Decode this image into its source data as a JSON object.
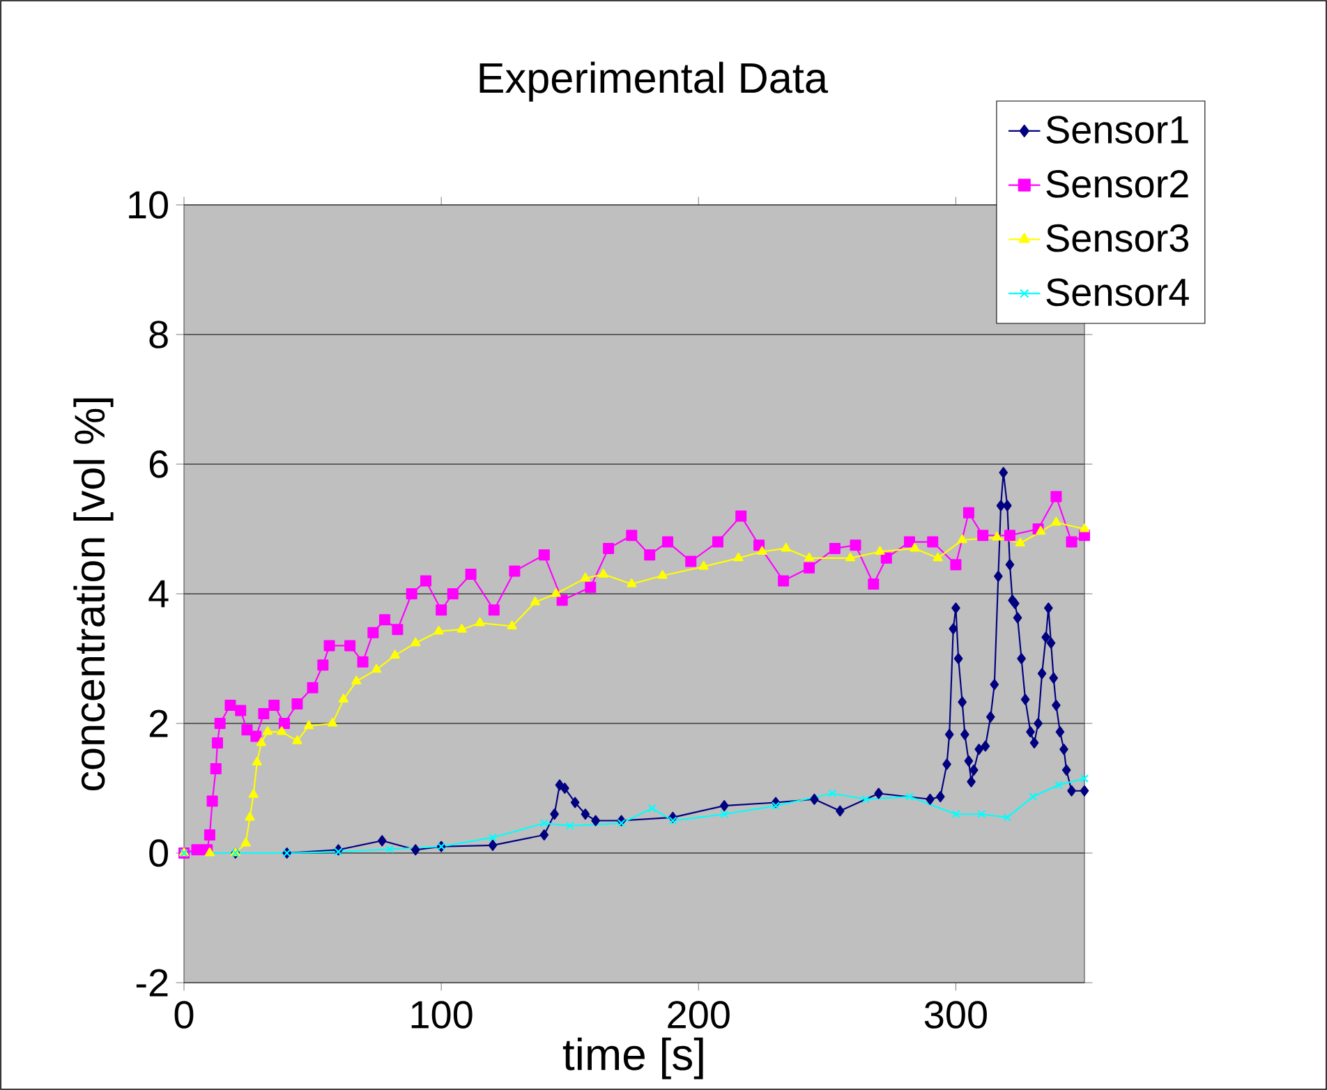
{
  "chart_data": {
    "type": "line",
    "title": "Experimental Data",
    "xlabel": "time [s]",
    "ylabel": "concentration [vol %]",
    "xlim": [
      0,
      350
    ],
    "xticks": [
      0,
      100,
      200,
      300
    ],
    "ylim": [
      -2,
      10
    ],
    "yticks": [
      -2,
      0,
      2,
      4,
      6,
      8,
      10
    ],
    "grid": "y",
    "legend": "top right",
    "series": [
      {
        "name": "Sensor1",
        "color": "#000080",
        "marker": "diamond",
        "x": [
          0,
          20,
          40,
          60,
          77,
          90,
          100,
          120,
          140,
          144,
          146,
          148,
          152,
          156,
          160,
          170,
          190,
          210,
          230,
          245,
          255,
          270,
          290,
          294,
          296.5,
          297.5,
          299,
          300,
          301,
          302.5,
          303.5,
          305,
          306,
          307,
          309,
          311.5,
          313.5,
          315,
          316.5,
          317.5,
          318.5,
          320,
          321,
          322,
          323,
          324,
          325.5,
          327,
          329,
          330.5,
          332,
          333.5,
          335,
          336,
          337,
          338,
          339,
          340.5,
          342,
          343,
          345,
          350
        ],
        "values": [
          0,
          0,
          0,
          0.05,
          0.19,
          0.05,
          0.1,
          0.12,
          0.28,
          0.6,
          1.05,
          1.0,
          0.78,
          0.6,
          0.5,
          0.5,
          0.55,
          0.73,
          0.78,
          0.83,
          0.65,
          0.92,
          0.83,
          0.87,
          1.37,
          1.83,
          3.46,
          3.78,
          3.0,
          2.33,
          1.83,
          1.42,
          1.1,
          1.28,
          1.6,
          1.65,
          2.1,
          2.6,
          4.27,
          5.36,
          5.87,
          5.36,
          4.45,
          3.9,
          3.85,
          3.63,
          3.0,
          2.37,
          1.87,
          1.7,
          2.0,
          2.77,
          3.33,
          3.78,
          3.24,
          2.7,
          2.28,
          1.87,
          1.6,
          1.28,
          0.96,
          0.96
        ]
      },
      {
        "name": "Sensor2",
        "color": "#ff00ff",
        "marker": "square",
        "x": [
          0,
          5,
          9,
          10,
          11,
          12.4,
          13,
          14,
          18,
          22,
          24.5,
          28,
          31,
          35,
          39,
          44,
          50,
          54,
          56.5,
          64.5,
          69.5,
          73.5,
          78,
          83,
          88.5,
          94,
          100,
          104.5,
          111.5,
          120.5,
          128.5,
          140,
          147,
          158,
          165,
          174,
          181,
          188,
          197,
          207.5,
          216.5,
          223.5,
          233,
          243,
          253,
          261,
          268,
          273,
          282,
          291,
          300,
          305,
          310.5,
          321,
          332,
          339,
          345,
          350
        ],
        "values": [
          0,
          0.05,
          0.05,
          0.28,
          0.8,
          1.3,
          1.7,
          2.0,
          2.28,
          2.2,
          1.9,
          1.8,
          2.15,
          2.28,
          2.0,
          2.3,
          2.55,
          2.9,
          3.2,
          3.2,
          2.95,
          3.4,
          3.6,
          3.45,
          4.0,
          4.2,
          3.75,
          4.0,
          4.3,
          3.75,
          4.35,
          4.6,
          3.9,
          4.1,
          4.7,
          4.9,
          4.6,
          4.8,
          4.5,
          4.8,
          5.2,
          4.75,
          4.2,
          4.4,
          4.7,
          4.75,
          4.15,
          4.55,
          4.8,
          4.8,
          4.45,
          5.25,
          4.9,
          4.9,
          5.0,
          5.5,
          4.8,
          4.9
        ]
      },
      {
        "name": "Sensor3",
        "color": "#ffff00",
        "marker": "triangle",
        "x": [
          0,
          10,
          20,
          24,
          25.6,
          27,
          28.4,
          30,
          32.5,
          38,
          44,
          48.5,
          57.7,
          62,
          67,
          74.8,
          82,
          90,
          99,
          108,
          115,
          127.5,
          136.5,
          144.6,
          156,
          163,
          174,
          186,
          202,
          215.5,
          224.7,
          234,
          243,
          259,
          270.5,
          284,
          293,
          302.5,
          316,
          325,
          333,
          339,
          350
        ],
        "values": [
          0,
          0,
          0,
          0.15,
          0.55,
          0.9,
          1.4,
          1.7,
          1.87,
          1.87,
          1.73,
          1.96,
          2.0,
          2.37,
          2.65,
          2.83,
          3.05,
          3.24,
          3.42,
          3.45,
          3.55,
          3.5,
          3.87,
          4.0,
          4.24,
          4.3,
          4.15,
          4.28,
          4.42,
          4.55,
          4.65,
          4.7,
          4.55,
          4.55,
          4.65,
          4.7,
          4.55,
          4.83,
          4.87,
          4.78,
          4.96,
          5.1,
          5.0
        ]
      },
      {
        "name": "Sensor4",
        "color": "#00ffff",
        "marker": "cross",
        "x": [
          0,
          20,
          40,
          60,
          80,
          100,
          120,
          140,
          150,
          170,
          182,
          190,
          210,
          230,
          252,
          265,
          282,
          300,
          310,
          320,
          330,
          340,
          350
        ],
        "values": [
          0,
          0,
          0,
          0.02,
          0.06,
          0.1,
          0.24,
          0.46,
          0.42,
          0.46,
          0.69,
          0.5,
          0.6,
          0.73,
          0.92,
          0.83,
          0.87,
          0.6,
          0.6,
          0.55,
          0.87,
          1.05,
          1.15
        ]
      }
    ]
  }
}
